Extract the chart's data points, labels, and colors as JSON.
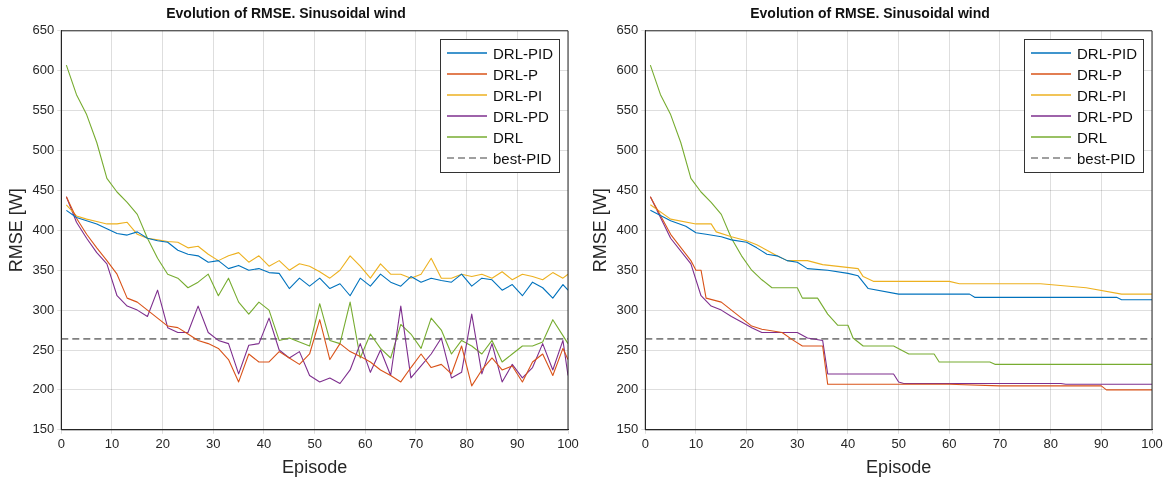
{
  "chart_data": [
    {
      "type": "line",
      "title": "Evolution of RMSE. Sinusoidal wind",
      "xlabel": "Episode",
      "ylabel": "RMSE [W]",
      "x": [
        1,
        3,
        5,
        7,
        9,
        11,
        13,
        15,
        17,
        19,
        21,
        23,
        25,
        27,
        29,
        31,
        33,
        35,
        37,
        39,
        41,
        43,
        45,
        47,
        49,
        51,
        53,
        55,
        57,
        59,
        61,
        63,
        65,
        67,
        69,
        71,
        73,
        75,
        77,
        79,
        81,
        83,
        85,
        87,
        89,
        91,
        93,
        95,
        97,
        99,
        100
      ],
      "series": [
        {
          "name": "DRL-PID",
          "color": "#0072bd",
          "values": [
            425,
            416,
            412,
            408,
            402,
            396,
            394,
            398,
            390,
            387,
            385,
            375,
            370,
            368,
            360,
            362,
            352,
            356,
            350,
            352,
            347,
            346,
            327,
            340,
            330,
            340,
            327,
            333,
            318,
            340,
            330,
            345,
            335,
            330,
            342,
            335,
            340,
            337,
            335,
            345,
            330,
            340,
            338,
            325,
            332,
            318,
            335,
            328,
            315,
            332,
            325
          ]
        },
        {
          "name": "DRL-P",
          "color": "#d95319",
          "values": [
            442,
            415,
            395,
            378,
            362,
            345,
            315,
            310,
            300,
            290,
            280,
            278,
            270,
            262,
            258,
            252,
            238,
            210,
            245,
            235,
            235,
            248,
            240,
            232,
            245,
            288,
            238,
            258,
            248,
            242,
            235,
            225,
            218,
            210,
            228,
            245,
            228,
            232,
            220,
            255,
            205,
            225,
            240,
            225,
            230,
            210,
            235,
            245,
            218,
            252,
            238
          ]
        },
        {
          "name": "DRL-PI",
          "color": "#edb120",
          "values": [
            432,
            418,
            414,
            411,
            408,
            408,
            410,
            395,
            390,
            388,
            386,
            385,
            378,
            380,
            370,
            362,
            368,
            372,
            360,
            368,
            355,
            362,
            350,
            358,
            355,
            348,
            340,
            350,
            368,
            355,
            340,
            358,
            345,
            345,
            340,
            345,
            365,
            340,
            340,
            345,
            342,
            345,
            340,
            348,
            338,
            345,
            342,
            338,
            347,
            340,
            345
          ]
        },
        {
          "name": "DRL-PD",
          "color": "#7e2f8e",
          "values": [
            442,
            410,
            390,
            372,
            358,
            318,
            305,
            300,
            292,
            325,
            278,
            272,
            272,
            305,
            272,
            262,
            258,
            220,
            256,
            258,
            290,
            250,
            240,
            248,
            218,
            210,
            215,
            208,
            225,
            258,
            222,
            250,
            218,
            305,
            215,
            230,
            245,
            265,
            215,
            222,
            295,
            220,
            258,
            210,
            232,
            215,
            228,
            258,
            225,
            262,
            218
          ]
        },
        {
          "name": "DRL",
          "color": "#77ac30",
          "values": [
            607,
            570,
            545,
            510,
            465,
            448,
            435,
            420,
            390,
            365,
            345,
            340,
            328,
            335,
            345,
            318,
            340,
            310,
            295,
            310,
            300,
            262,
            265,
            260,
            255,
            308,
            262,
            258,
            310,
            240,
            270,
            252,
            240,
            282,
            270,
            252,
            290,
            275,
            245,
            262,
            255,
            245,
            262,
            235,
            245,
            255,
            255,
            260,
            288,
            268,
            258
          ]
        }
      ],
      "ref_lines": [
        {
          "axis": "y",
          "value": 264,
          "label": "best-PID",
          "color": "#808080",
          "line_style": "dashed"
        }
      ],
      "xlim": [
        0,
        100
      ],
      "xticks": [
        0,
        10,
        20,
        30,
        40,
        50,
        60,
        70,
        80,
        90,
        100
      ],
      "ylim": [
        150,
        650
      ],
      "yticks": [
        150,
        200,
        250,
        300,
        350,
        400,
        450,
        500,
        550,
        600,
        650
      ],
      "grid": true,
      "legend": "top right"
    },
    {
      "type": "line",
      "title": "Evolution of RMSE. Sinusoidal wind",
      "xlabel": "Episode",
      "ylabel": "RMSE [W]",
      "series": [
        {
          "name": "DRL-PID",
          "color": "#0072bd",
          "x": [
            1,
            5,
            8,
            10,
            12,
            15,
            17,
            20,
            22,
            24,
            26,
            28,
            30,
            32,
            36,
            40,
            42,
            44,
            50,
            64,
            65,
            93,
            94,
            100
          ],
          "values": [
            425,
            412,
            405,
            397,
            395,
            392,
            388,
            385,
            378,
            370,
            368,
            362,
            360,
            352,
            350,
            346,
            343,
            327,
            320,
            320,
            316,
            316,
            313,
            313
          ]
        },
        {
          "name": "DRL-P",
          "color": "#d95319",
          "x": [
            1,
            5,
            9,
            10,
            11,
            12,
            15,
            17,
            19,
            21,
            23,
            27,
            29,
            31,
            35,
            36,
            60,
            70,
            90,
            91,
            100
          ],
          "values": [
            442,
            395,
            362,
            350,
            350,
            315,
            310,
            300,
            290,
            280,
            276,
            272,
            263,
            255,
            255,
            207,
            207,
            205,
            205,
            200,
            200
          ]
        },
        {
          "name": "DRL-PI",
          "color": "#edb120",
          "x": [
            1,
            5,
            10,
            13,
            14,
            17,
            20,
            22,
            24,
            26,
            28,
            32,
            35,
            42,
            43,
            45,
            60,
            62,
            78,
            87,
            94,
            100
          ],
          "values": [
            432,
            414,
            408,
            408,
            398,
            392,
            387,
            382,
            375,
            368,
            362,
            362,
            357,
            352,
            342,
            336,
            336,
            333,
            333,
            328,
            320,
            320
          ]
        },
        {
          "name": "DRL-PD",
          "color": "#7e2f8e",
          "x": [
            1,
            5,
            9,
            11,
            13,
            15,
            17,
            19,
            21,
            23,
            30,
            32,
            35,
            36,
            49,
            50,
            51,
            82,
            83,
            100
          ],
          "values": [
            442,
            390,
            358,
            318,
            305,
            300,
            292,
            285,
            278,
            272,
            272,
            265,
            262,
            220,
            220,
            210,
            208,
            208,
            207,
            207
          ]
        },
        {
          "name": "DRL",
          "color": "#77ac30",
          "x": [
            1,
            3,
            5,
            7,
            9,
            11,
            13,
            15,
            17,
            19,
            21,
            23,
            25,
            30,
            31,
            34,
            36,
            38,
            40,
            41,
            43,
            49,
            52,
            57,
            58,
            68,
            69,
            100
          ],
          "values": [
            607,
            570,
            545,
            510,
            465,
            448,
            435,
            420,
            390,
            368,
            350,
            338,
            328,
            328,
            315,
            315,
            295,
            281,
            281,
            265,
            255,
            255,
            245,
            245,
            235,
            235,
            232,
            232
          ]
        }
      ],
      "ref_lines": [
        {
          "axis": "y",
          "value": 264,
          "label": "best-PID",
          "color": "#808080",
          "line_style": "dashed"
        }
      ],
      "xlim": [
        0,
        100
      ],
      "xticks": [
        0,
        10,
        20,
        30,
        40,
        50,
        60,
        70,
        80,
        90,
        100
      ],
      "ylim": [
        150,
        650
      ],
      "yticks": [
        150,
        200,
        250,
        300,
        350,
        400,
        450,
        500,
        550,
        600,
        650
      ],
      "grid": true,
      "legend": "top right"
    }
  ]
}
